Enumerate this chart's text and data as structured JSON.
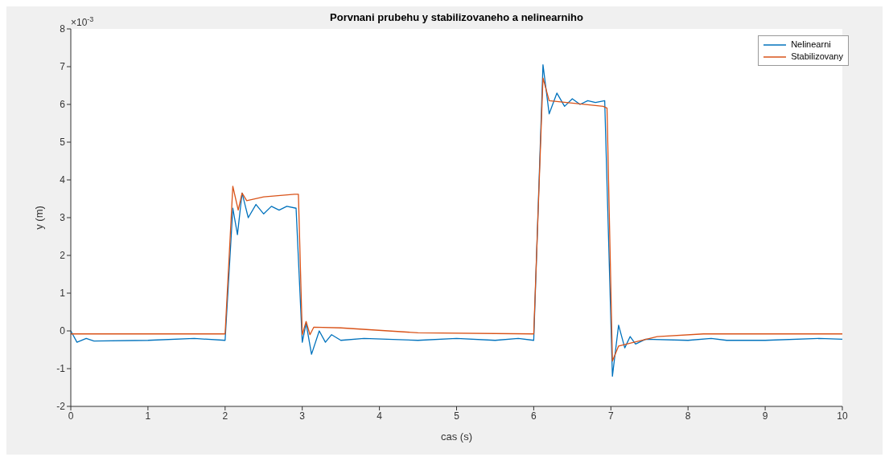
{
  "chart_data": {
    "type": "line",
    "title": "Porvnani prubehu y stabilizovaneho a nelinearniho",
    "xlabel": "cas (s)",
    "ylabel": "y (m)",
    "annotations": [
      "×10$^{-3}$"
    ],
    "xlim": [
      0,
      10
    ],
    "xticks": [
      0,
      1,
      2,
      3,
      4,
      5,
      6,
      7,
      8,
      9,
      10
    ],
    "ylim": [
      -2,
      8
    ],
    "yticks": [
      -2,
      -1,
      0,
      1,
      2,
      3,
      4,
      5,
      6,
      7,
      8
    ],
    "grid": false,
    "legend": "top right",
    "marker": "none",
    "line_style": "solid",
    "series": [
      {
        "name": "Nelinearni",
        "color": "#0072bd",
        "x": [
          0,
          0.08,
          0.2,
          0.3,
          1,
          1.6,
          2.0,
          2.1,
          2.16,
          2.22,
          2.3,
          2.4,
          2.5,
          2.6,
          2.7,
          2.8,
          2.92,
          3.0,
          3.05,
          3.12,
          3.22,
          3.3,
          3.38,
          3.5,
          3.8,
          4.5,
          5.0,
          5.5,
          5.8,
          6.0,
          6.12,
          6.2,
          6.3,
          6.4,
          6.5,
          6.6,
          6.7,
          6.8,
          6.92,
          7.02,
          7.1,
          7.18,
          7.25,
          7.32,
          7.45,
          8,
          8.3,
          8.5,
          9.0,
          9.7,
          10
        ],
        "values": [
          0,
          -0.3,
          -0.2,
          -0.27,
          -0.25,
          -0.2,
          -0.25,
          3.25,
          2.55,
          3.65,
          3.0,
          3.35,
          3.1,
          3.3,
          3.2,
          3.3,
          3.25,
          -0.3,
          0.2,
          -0.62,
          0.0,
          -0.3,
          -0.1,
          -0.25,
          -0.2,
          -0.25,
          -0.2,
          -0.25,
          -0.2,
          -0.25,
          7.05,
          5.75,
          6.3,
          5.95,
          6.15,
          6.0,
          6.1,
          6.05,
          6.1,
          -1.2,
          0.15,
          -0.45,
          -0.15,
          -0.35,
          -0.22,
          -0.25,
          -0.2,
          -0.25,
          -0.25,
          -0.2,
          -0.22
        ]
      },
      {
        "name": "Stabilizovany",
        "color": "#d95319",
        "x": [
          0,
          2.0,
          2.1,
          2.17,
          2.22,
          2.28,
          2.5,
          2.9,
          2.95,
          3.0,
          3.05,
          3.1,
          3.15,
          3.5,
          4.5,
          6.0,
          6.12,
          6.2,
          6.9,
          6.95,
          7.02,
          7.1,
          7.3,
          7.6,
          8.2,
          10
        ],
        "values": [
          -0.08,
          -0.08,
          3.83,
          3.2,
          3.65,
          3.45,
          3.55,
          3.62,
          3.62,
          -0.1,
          0.25,
          -0.1,
          0.1,
          0.08,
          -0.05,
          -0.08,
          6.7,
          6.1,
          5.95,
          5.9,
          -0.8,
          -0.4,
          -0.3,
          -0.15,
          -0.08,
          -0.08
        ]
      }
    ]
  }
}
